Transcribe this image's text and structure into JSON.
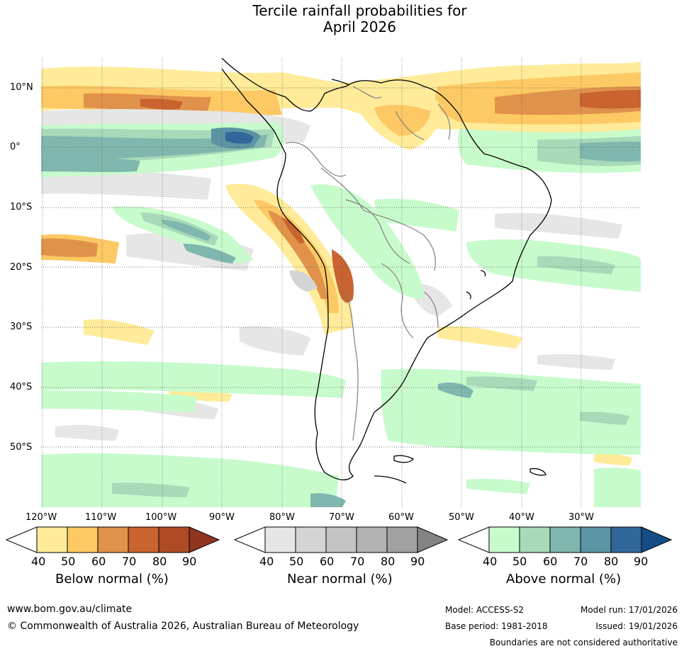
{
  "title": {
    "line1": "Tercile rainfall probabilities for",
    "line2": "April 2026"
  },
  "map": {
    "latitude_labels": [
      "10°N",
      "0°",
      "10°S",
      "20°S",
      "30°S",
      "40°S",
      "50°S"
    ],
    "longitude_labels": [
      "120°W",
      "110°W",
      "100°W",
      "90°W",
      "80°W",
      "70°W",
      "60°W",
      "50°W",
      "40°W",
      "30°W"
    ],
    "land_boundary_color": "#000000",
    "country_border_color": "#808080",
    "gridline_color": "#555555"
  },
  "colorbars": [
    {
      "label": "Below normal (%)",
      "ticks": [
        "40",
        "50",
        "60",
        "70",
        "80",
        "90"
      ],
      "colors": [
        "#ffeb99",
        "#fdc964",
        "#e0924a",
        "#c9632f",
        "#ae4b24",
        "#8f3520"
      ]
    },
    {
      "label": "Near normal (%)",
      "ticks": [
        "40",
        "50",
        "60",
        "70",
        "80",
        "90"
      ],
      "colors": [
        "#e6e6e6",
        "#d4d4d4",
        "#c4c4c4",
        "#b2b2b2",
        "#a1a1a1",
        "#848484"
      ]
    },
    {
      "label": "Above normal (%)",
      "ticks": [
        "40",
        "50",
        "60",
        "70",
        "80",
        "90"
      ],
      "colors": [
        "#c8fbcc",
        "#a8dab9",
        "#7fb7ae",
        "#5b94a3",
        "#32679a",
        "#154c86"
      ]
    }
  ],
  "footer": {
    "website": "www.bom.gov.au/climate",
    "copyright": "© Commonwealth of Australia 2026, Australian Bureau of Meteorology",
    "model": "Model: ACCESS-S2",
    "base_period": "Base period: 1981-2018",
    "model_run": "Model run: 17/01/2026",
    "issued": "Issued: 19/01/2026",
    "disclaimer": "Boundaries are not considered authoritative"
  }
}
